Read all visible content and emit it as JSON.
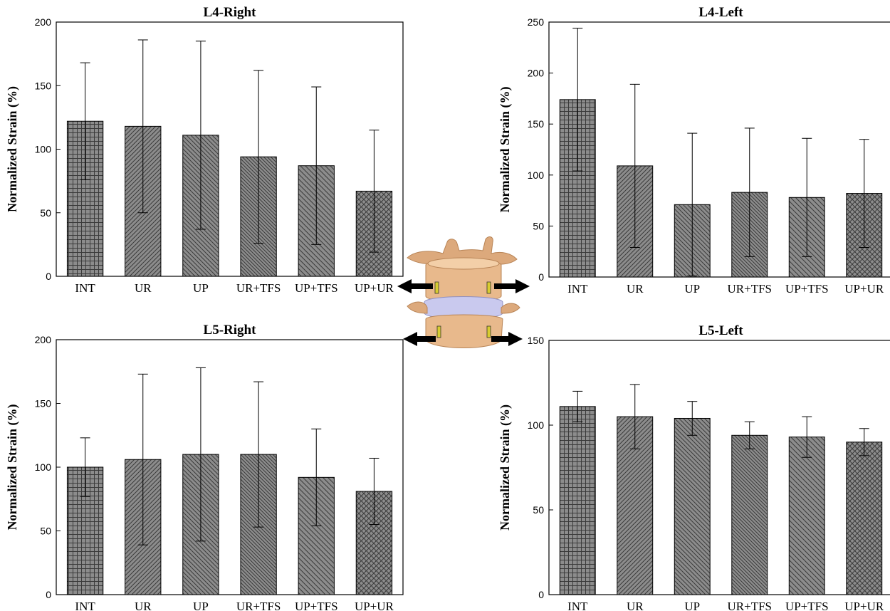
{
  "chart_data": [
    {
      "type": "bar",
      "title": "L4-Right",
      "ylabel": "Normalized Strain (%)",
      "categories": [
        "INT",
        "UR",
        "UP",
        "UR+TFS",
        "UP+TFS",
        "UP+UR"
      ],
      "values": [
        122,
        118,
        111,
        94,
        87,
        67
      ],
      "error": [
        46,
        68,
        74,
        68,
        62,
        48
      ],
      "ylim": [
        0,
        200
      ],
      "yticks": [
        0,
        50,
        100,
        150,
        200
      ],
      "grid": false
    },
    {
      "type": "bar",
      "title": "L4-Left",
      "ylabel": "Normalized Strain (%)",
      "categories": [
        "INT",
        "UR",
        "UP",
        "UR+TFS",
        "UP+TFS",
        "UP+UR"
      ],
      "values": [
        174,
        109,
        71,
        83,
        78,
        82
      ],
      "error": [
        70,
        80,
        70,
        63,
        58,
        53
      ],
      "ylim": [
        0,
        250
      ],
      "yticks": [
        0,
        50,
        100,
        150,
        200,
        250
      ],
      "grid": false
    },
    {
      "type": "bar",
      "title": "L5-Right",
      "ylabel": "Normalized Strain (%)",
      "categories": [
        "INT",
        "UR",
        "UP",
        "UR+TFS",
        "UP+TFS",
        "UP+UR"
      ],
      "values": [
        100,
        106,
        110,
        110,
        92,
        81
      ],
      "error": [
        23,
        67,
        68,
        57,
        38,
        26
      ],
      "ylim": [
        0,
        200
      ],
      "yticks": [
        0,
        50,
        100,
        150,
        200
      ],
      "grid": false
    },
    {
      "type": "bar",
      "title": "L5-Left",
      "ylabel": "Normalized Strain (%)",
      "categories": [
        "INT",
        "UR",
        "UP",
        "UR+TFS",
        "UP+TFS",
        "UP+UR"
      ],
      "values": [
        111,
        105,
        104,
        94,
        93,
        90
      ],
      "error": [
        9,
        19,
        10,
        8,
        12,
        8
      ],
      "ylim": [
        0,
        150
      ],
      "yticks": [
        0,
        50,
        100,
        150
      ],
      "grid": false
    }
  ],
  "colors": {
    "bar_fill": "#8c8c8c",
    "hatch": "#3a3a3a",
    "bone": "#e8b98c",
    "disc": "#c9c9ee",
    "arrow": "#000000",
    "sensor": "#d8cc30"
  },
  "illustration": {
    "icon": "lumbar-vertebra-icon"
  }
}
